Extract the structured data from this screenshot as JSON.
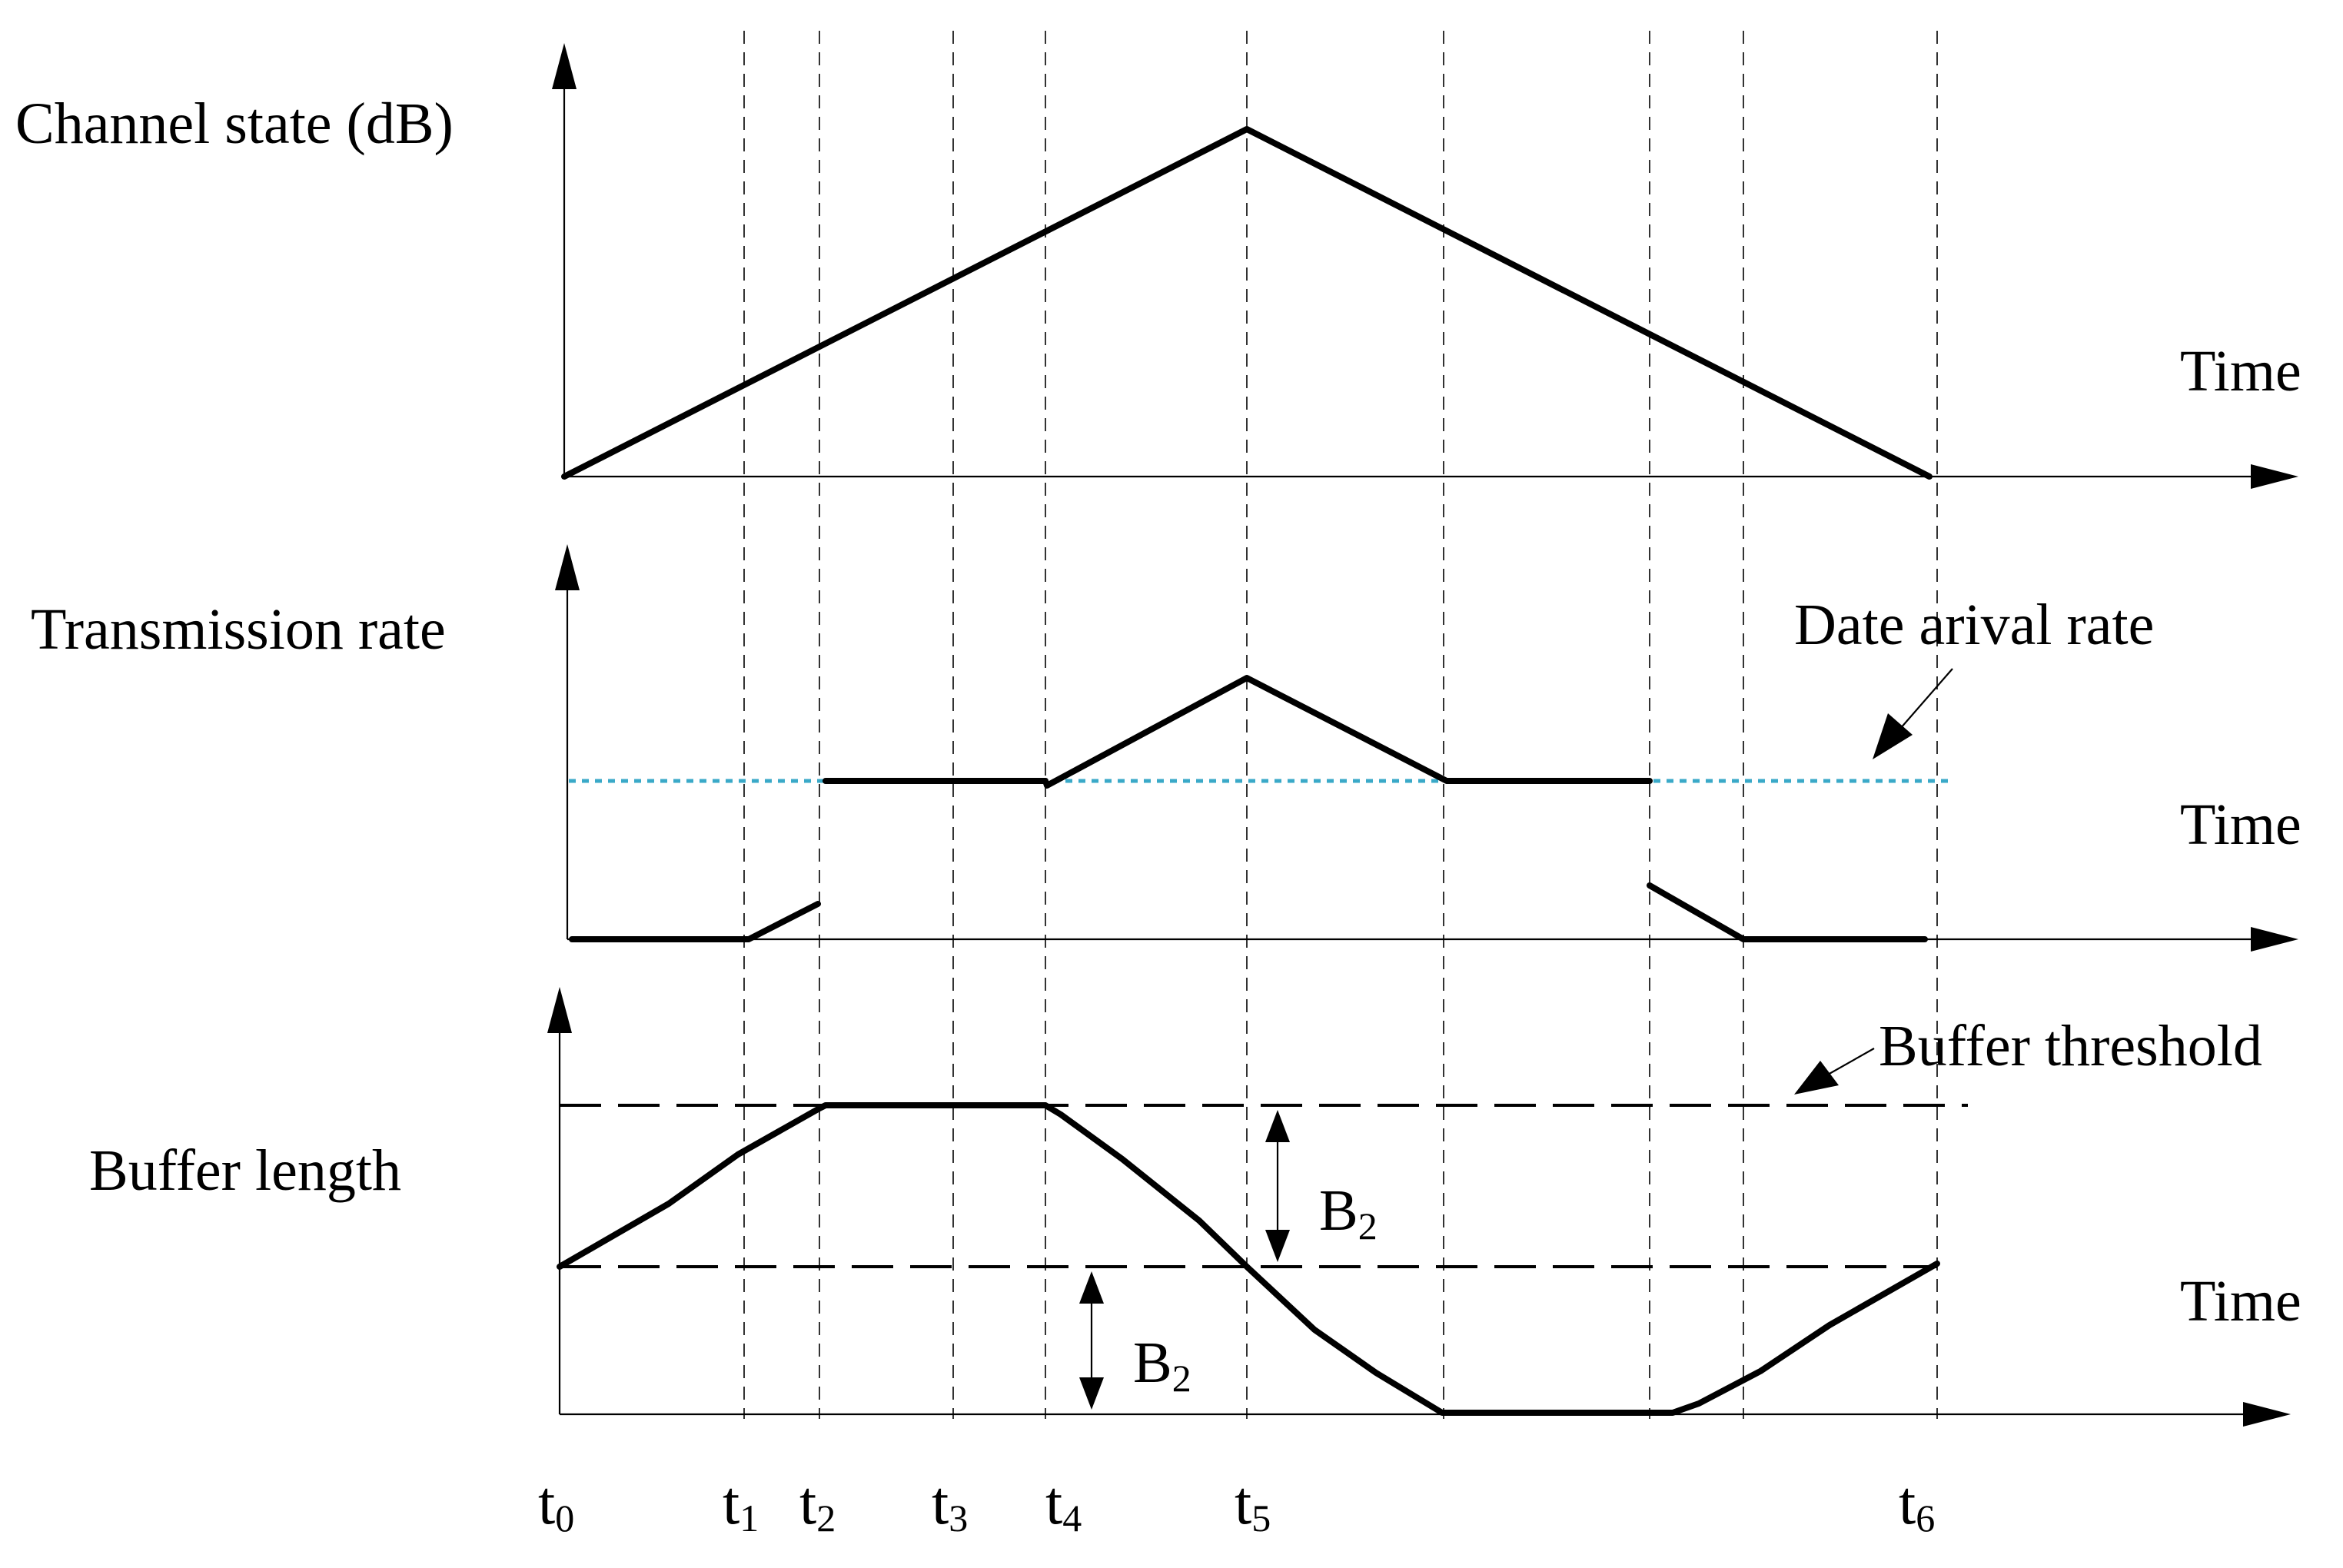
{
  "labels": {
    "channel_state": "Channel state (dB)",
    "transmission_rate": "Transmission rate",
    "buffer_length": "Buffer length",
    "time_1": "Time",
    "time_2": "Time",
    "time_3": "Time",
    "arrival_rate": "Date arival rate",
    "buffer_threshold": "Buffer threshold",
    "b2_upper": {
      "main": "B",
      "sub": "2"
    },
    "b2_lower": {
      "main": "B",
      "sub": "2"
    }
  },
  "time_marks": [
    {
      "main": "t",
      "sub": "0"
    },
    {
      "main": "t",
      "sub": "1"
    },
    {
      "main": "t",
      "sub": "2"
    },
    {
      "main": "t",
      "sub": "3"
    },
    {
      "main": "t",
      "sub": "4"
    },
    {
      "main": "t",
      "sub": "5"
    },
    {
      "main": "t",
      "sub": "6"
    }
  ],
  "colors": {
    "line": "#000000",
    "arrival_rate_line": "#3aa9c8",
    "background": "#ffffff"
  }
}
